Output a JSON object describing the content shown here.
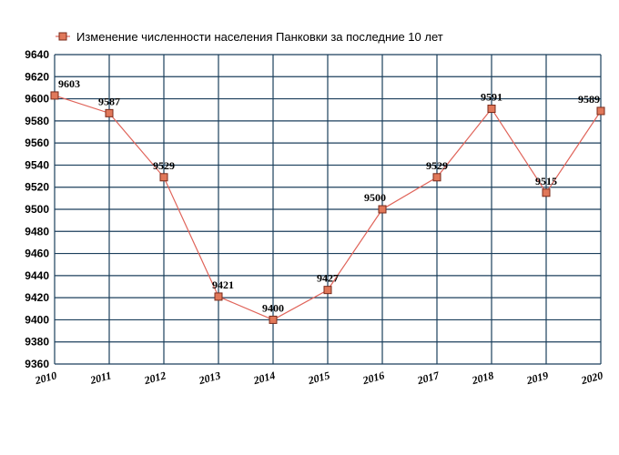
{
  "chart_data": {
    "type": "line",
    "title": "",
    "xlabel": "",
    "ylabel": "",
    "x": [
      "2010",
      "2011",
      "2012",
      "2013",
      "2014",
      "2015",
      "2016",
      "2017",
      "2018",
      "2019",
      "2020"
    ],
    "series": [
      {
        "name": "Изменение численности населения Панковки за последние 10 лет",
        "values": [
          9603,
          9587,
          9529,
          9421,
          9400,
          9427,
          9500,
          9529,
          9591,
          9515,
          9589
        ]
      }
    ],
    "data_labels": [
      "9603",
      "9587",
      "9529",
      "9421",
      "9400",
      "9427",
      "9500",
      "9529",
      "9591",
      "9515",
      "9589"
    ],
    "ylim": [
      9360,
      9640
    ],
    "yticks": [
      "9360",
      "9380",
      "9400",
      "9420",
      "9440",
      "9460",
      "9480",
      "9500",
      "9520",
      "9540",
      "9560",
      "9580",
      "9600",
      "9620",
      "9640"
    ],
    "grid": true,
    "legend_position": "top",
    "colors": {
      "line": "#e0645a",
      "marker_fill": "#e0785a",
      "marker_stroke": "#7a2a1a",
      "grid": "#1b3f5c"
    }
  }
}
